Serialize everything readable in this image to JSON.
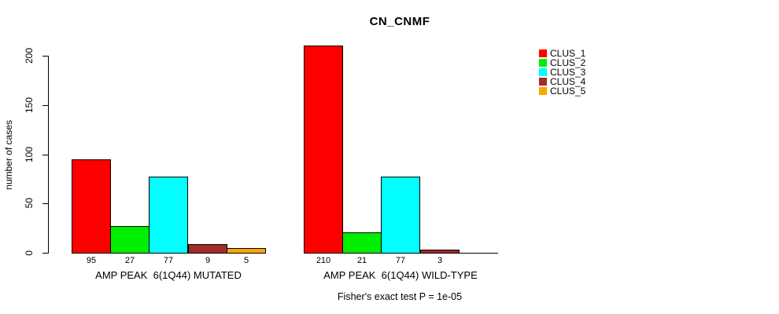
{
  "chart_data": {
    "type": "bar",
    "title": "CN_CNMF",
    "ylabel": "number of cases",
    "xlabel": "",
    "ylim": [
      0,
      210
    ],
    "yticks": [
      "0",
      "50",
      "100",
      "150",
      "200"
    ],
    "ytick_values": [
      0,
      50,
      100,
      150,
      200
    ],
    "grid": false,
    "legend": {
      "position": "right",
      "entries": [
        {
          "label": "CLUS_1",
          "color": "#ff0000"
        },
        {
          "label": "CLUS_2",
          "color": "#00ee00"
        },
        {
          "label": "CLUS_3",
          "color": "#00ffff"
        },
        {
          "label": "CLUS_4",
          "color": "#a52a2a"
        },
        {
          "label": "CLUS_5",
          "color": "#ffa500"
        }
      ]
    },
    "groups": [
      {
        "label": "AMP PEAK  6(1Q44) MUTATED",
        "values": [
          95,
          27,
          77,
          9,
          5
        ],
        "value_labels": [
          "95",
          "27",
          "77",
          "9",
          "5"
        ]
      },
      {
        "label": "AMP PEAK  6(1Q44) WILD-TYPE",
        "values": [
          210,
          21,
          77,
          3,
          0
        ],
        "value_labels": [
          "210",
          "21",
          "77",
          "3",
          ""
        ]
      }
    ],
    "annotation": "Fisher's exact test P = 1e-05"
  }
}
